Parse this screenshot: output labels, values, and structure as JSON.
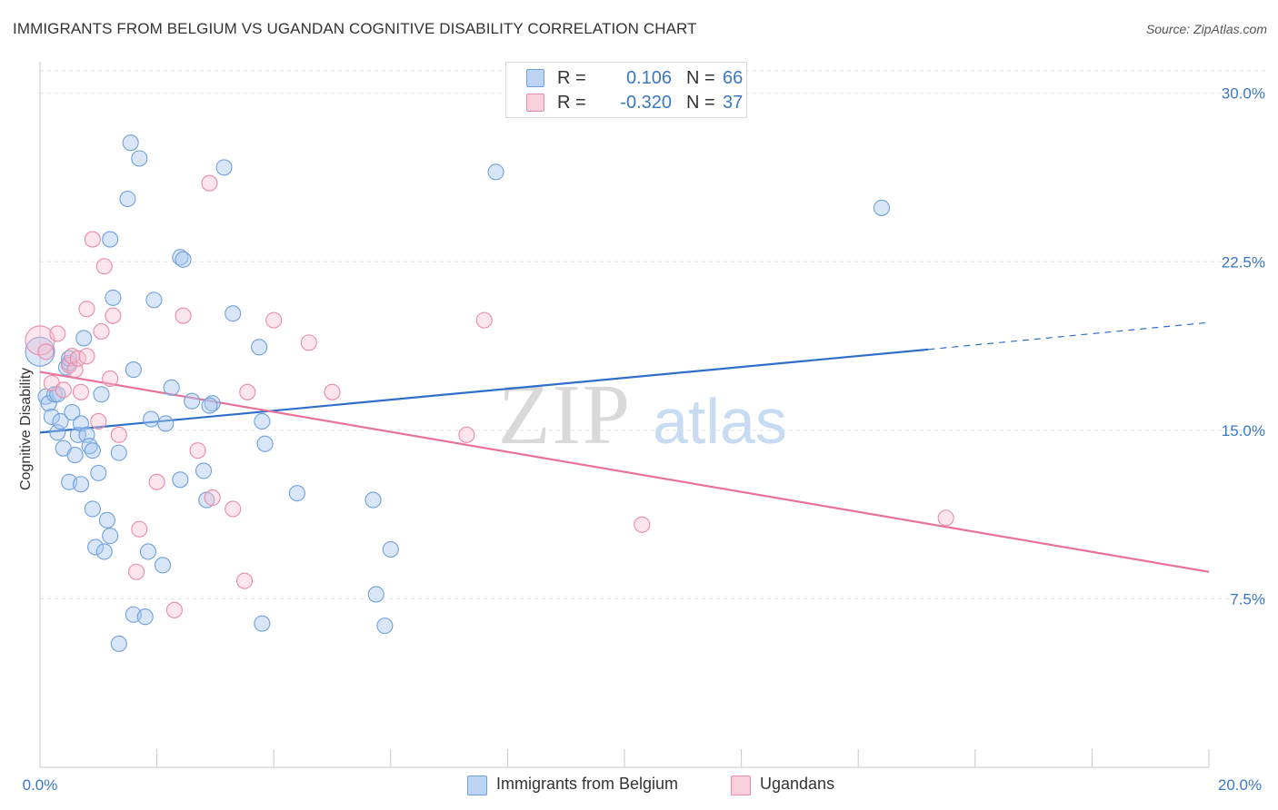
{
  "title": "IMMIGRANTS FROM BELGIUM VS UGANDAN COGNITIVE DISABILITY CORRELATION CHART",
  "source": "Source: ZipAtlas.com",
  "watermark": {
    "zip": "ZIP",
    "atlas": "atlas"
  },
  "legend": {
    "rows": [
      {
        "r_label": "R =",
        "r_value": "0.106",
        "n_label": "N =",
        "n_value": "66",
        "color": "#a9c8f0",
        "border": "#6fa0dc"
      },
      {
        "r_label": "R =",
        "r_value": "-0.320",
        "n_label": "N =",
        "n_value": "37",
        "color": "#f7bfd0",
        "border": "#e98aa8"
      }
    ]
  },
  "bottom_legend": [
    {
      "label": "Immigrants from Belgium"
    },
    {
      "label": "Ugandans"
    }
  ],
  "chart_data": {
    "type": "scatter",
    "title": "IMMIGRANTS FROM BELGIUM VS UGANDAN COGNITIVE DISABILITY CORRELATION CHART",
    "xlabel": "",
    "ylabel": "Cognitive Disability",
    "xlim": [
      0,
      20
    ],
    "ylim": [
      0,
      31
    ],
    "x_tick_labels": [
      "0.0%",
      "20.0%"
    ],
    "y_ticks": [
      7.5,
      15.0,
      22.5,
      30.0
    ],
    "y_tick_labels": [
      "7.5%",
      "15.0%",
      "22.5%",
      "30.0%"
    ],
    "grid": true,
    "legend_position": "top-center",
    "series": [
      {
        "name": "Immigrants from Belgium",
        "color": "#6fa0dc",
        "fill": "#a9c8f0",
        "trend": {
          "x0": 0.0,
          "y0": 14.9,
          "x1": 15.2,
          "y1": 18.6,
          "dash_to_x": 20.0,
          "dash_to_y": 19.8
        },
        "points": [
          [
            0.0,
            18.5
          ],
          [
            0.1,
            16.5
          ],
          [
            0.15,
            16.2
          ],
          [
            0.2,
            15.6
          ],
          [
            0.25,
            16.6
          ],
          [
            0.3,
            14.9
          ],
          [
            0.35,
            15.4
          ],
          [
            0.4,
            14.2
          ],
          [
            0.45,
            17.8
          ],
          [
            0.5,
            18.0
          ],
          [
            0.5,
            12.7
          ],
          [
            0.55,
            15.8
          ],
          [
            0.6,
            13.9
          ],
          [
            0.65,
            14.8
          ],
          [
            0.7,
            12.6
          ],
          [
            0.7,
            15.3
          ],
          [
            0.75,
            19.1
          ],
          [
            0.8,
            14.8
          ],
          [
            0.85,
            14.3
          ],
          [
            0.9,
            14.1
          ],
          [
            0.9,
            11.5
          ],
          [
            0.95,
            9.8
          ],
          [
            1.0,
            13.1
          ],
          [
            1.05,
            16.6
          ],
          [
            1.1,
            9.6
          ],
          [
            1.15,
            11.0
          ],
          [
            1.2,
            10.3
          ],
          [
            1.2,
            23.5
          ],
          [
            1.25,
            20.9
          ],
          [
            1.35,
            5.5
          ],
          [
            1.35,
            14.0
          ],
          [
            1.5,
            25.3
          ],
          [
            1.55,
            27.8
          ],
          [
            1.6,
            6.8
          ],
          [
            1.6,
            17.7
          ],
          [
            1.7,
            27.1
          ],
          [
            1.8,
            6.7
          ],
          [
            1.85,
            9.6
          ],
          [
            1.9,
            15.5
          ],
          [
            1.95,
            20.8
          ],
          [
            2.1,
            9.0
          ],
          [
            2.15,
            15.3
          ],
          [
            2.25,
            16.9
          ],
          [
            2.4,
            22.7
          ],
          [
            2.4,
            12.8
          ],
          [
            2.45,
            22.6
          ],
          [
            2.6,
            16.3
          ],
          [
            2.8,
            13.2
          ],
          [
            2.85,
            11.9
          ],
          [
            2.95,
            16.2
          ],
          [
            3.15,
            26.7
          ],
          [
            3.3,
            20.2
          ],
          [
            3.75,
            18.7
          ],
          [
            3.8,
            6.4
          ],
          [
            3.8,
            15.4
          ],
          [
            3.85,
            14.4
          ],
          [
            4.4,
            12.2
          ],
          [
            5.7,
            11.9
          ],
          [
            5.75,
            7.7
          ],
          [
            5.9,
            6.3
          ],
          [
            6.0,
            9.7
          ],
          [
            7.8,
            26.5
          ],
          [
            14.4,
            24.9
          ],
          [
            0.3,
            16.6
          ],
          [
            0.5,
            18.2
          ],
          [
            2.9,
            16.1
          ]
        ]
      },
      {
        "name": "Ugandans",
        "color": "#e8739a",
        "fill": "#f7bfd0",
        "trend": {
          "x0": 0.0,
          "y0": 17.6,
          "x1": 20.0,
          "y1": 8.7
        },
        "points": [
          [
            0.0,
            19.0
          ],
          [
            0.1,
            18.5
          ],
          [
            0.2,
            17.1
          ],
          [
            0.3,
            19.3
          ],
          [
            0.4,
            16.8
          ],
          [
            0.5,
            17.9
          ],
          [
            0.55,
            18.3
          ],
          [
            0.6,
            17.7
          ],
          [
            0.65,
            18.2
          ],
          [
            0.7,
            16.7
          ],
          [
            0.8,
            18.3
          ],
          [
            0.8,
            20.4
          ],
          [
            0.9,
            23.5
          ],
          [
            1.0,
            15.4
          ],
          [
            1.05,
            19.4
          ],
          [
            1.1,
            22.3
          ],
          [
            1.2,
            17.3
          ],
          [
            1.25,
            20.1
          ],
          [
            1.35,
            14.8
          ],
          [
            1.65,
            8.7
          ],
          [
            1.7,
            10.6
          ],
          [
            2.0,
            12.7
          ],
          [
            2.3,
            7.0
          ],
          [
            2.45,
            20.1
          ],
          [
            2.7,
            14.1
          ],
          [
            2.9,
            26.0
          ],
          [
            2.95,
            12.0
          ],
          [
            3.3,
            11.5
          ],
          [
            3.5,
            8.3
          ],
          [
            3.55,
            16.7
          ],
          [
            4.0,
            19.9
          ],
          [
            4.6,
            18.9
          ],
          [
            5.0,
            16.7
          ],
          [
            7.3,
            14.8
          ],
          [
            7.6,
            19.9
          ],
          [
            10.3,
            10.8
          ],
          [
            15.5,
            11.1
          ]
        ]
      }
    ]
  }
}
